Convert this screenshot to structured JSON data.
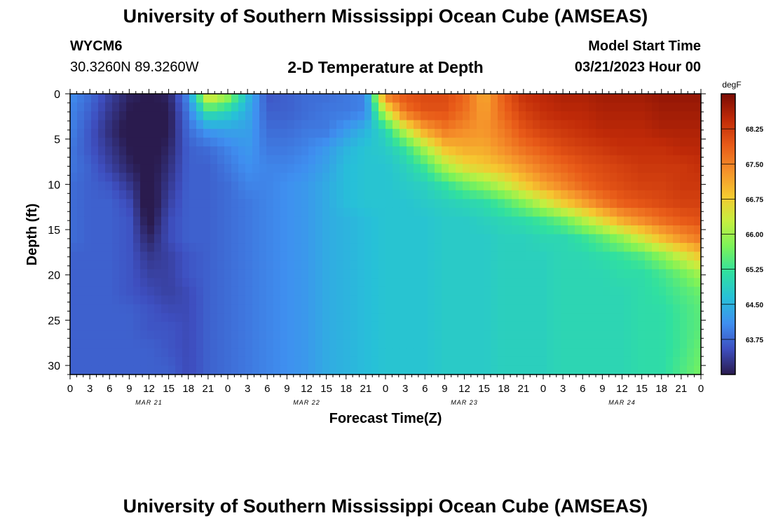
{
  "header": {
    "title": "University of Southern Mississippi Ocean Cube (AMSEAS)",
    "station": "WYCM6",
    "coords": "30.3260N  89.3260W",
    "plot_title": "2-D Temperature at Depth",
    "start_label": "Model Start Time",
    "start_value": "03/21/2023 Hour 00"
  },
  "footer": {
    "title": "University of Southern Mississippi Ocean Cube (AMSEAS)"
  },
  "chart_data": {
    "type": "heatmap",
    "xlabel": "Forecast Time(Z)",
    "ylabel": "Depth (ft)",
    "x_hours_range": [
      0,
      96
    ],
    "y_range": [
      0,
      31
    ],
    "y_inverted": true,
    "x_tick_labels": [
      "0",
      "3",
      "6",
      "9",
      "12",
      "15",
      "18",
      "21",
      "0",
      "3",
      "6",
      "9",
      "12",
      "15",
      "18",
      "21",
      "0",
      "3",
      "6",
      "9",
      "12",
      "15",
      "18",
      "21",
      "0",
      "3",
      "6",
      "9",
      "12",
      "15",
      "18",
      "21",
      "0"
    ],
    "date_labels": [
      "MAR 21",
      "MAR 22",
      "MAR 23",
      "MAR 24"
    ],
    "y_ticks": [
      0,
      5,
      10,
      15,
      20,
      25,
      30
    ],
    "colorbar": {
      "unit": "degF",
      "ticks": [
        "63.75",
        "64.50",
        "65.25",
        "66.00",
        "66.75",
        "67.50",
        "68.25"
      ],
      "range": [
        63.0,
        69.0
      ]
    },
    "colormap": [
      "#2a1b4e",
      "#3e4fc0",
      "#3f8ff0",
      "#27c0d8",
      "#30e0a0",
      "#7af25a",
      "#c5ef40",
      "#f5c830",
      "#f5902a",
      "#e85a18",
      "#c02a08",
      "#7a0c04"
    ],
    "temperature_grid": {
      "depths_ft": [
        0,
        2,
        4,
        6,
        8,
        10,
        12,
        14,
        16,
        18,
        20,
        22,
        24,
        26,
        28,
        31
      ],
      "hours": [
        0,
        3,
        6,
        9,
        12,
        15,
        18,
        21,
        24,
        27,
        30,
        33,
        36,
        39,
        42,
        45,
        48,
        51,
        54,
        57,
        60,
        63,
        66,
        69,
        72,
        75,
        78,
        81,
        84,
        87,
        90,
        93,
        96
      ],
      "rows": [
        [
          64.1,
          63.8,
          63.4,
          63.1,
          63.0,
          63.1,
          64.1,
          66.8,
          66.1,
          64.6,
          63.6,
          63.7,
          63.8,
          63.8,
          63.9,
          64.0,
          67.7,
          68.0,
          68.1,
          68.1,
          67.8,
          67.1,
          67.9,
          68.4,
          68.5,
          68.6,
          68.6,
          68.7,
          68.7,
          68.7,
          68.8,
          68.8,
          68.8
        ],
        [
          64.0,
          63.7,
          63.3,
          63.0,
          62.9,
          63.0,
          63.9,
          65.2,
          64.9,
          64.4,
          63.7,
          63.7,
          63.8,
          63.9,
          63.9,
          64.0,
          66.3,
          67.7,
          68.0,
          68.0,
          67.7,
          67.2,
          67.8,
          68.2,
          68.4,
          68.5,
          68.5,
          68.6,
          68.6,
          68.6,
          68.7,
          68.7,
          68.7
        ],
        [
          64.0,
          63.6,
          63.2,
          62.9,
          62.9,
          63.0,
          63.8,
          64.2,
          64.3,
          64.3,
          63.8,
          63.8,
          63.9,
          63.9,
          64.2,
          64.5,
          65.0,
          66.3,
          67.2,
          67.6,
          67.4,
          67.3,
          67.6,
          68.0,
          68.2,
          68.3,
          68.4,
          68.5,
          68.5,
          68.5,
          68.6,
          68.6,
          68.6
        ],
        [
          63.9,
          63.6,
          63.3,
          63.0,
          62.9,
          63.1,
          63.7,
          63.8,
          64.0,
          64.2,
          63.9,
          63.9,
          64.0,
          64.2,
          64.5,
          64.7,
          64.8,
          65.2,
          66.1,
          66.9,
          67.1,
          67.1,
          67.4,
          67.7,
          67.9,
          68.1,
          68.2,
          68.3,
          68.4,
          68.4,
          68.4,
          68.5,
          68.5
        ],
        [
          63.9,
          63.7,
          63.4,
          63.1,
          62.9,
          63.2,
          63.7,
          63.7,
          63.9,
          64.1,
          64.0,
          64.0,
          64.1,
          64.3,
          64.6,
          64.7,
          64.7,
          64.9,
          65.3,
          66.1,
          66.6,
          66.8,
          67.0,
          67.3,
          67.6,
          67.8,
          68.0,
          68.1,
          68.2,
          68.3,
          68.3,
          68.3,
          68.4
        ],
        [
          63.8,
          63.7,
          63.6,
          63.3,
          62.9,
          63.3,
          63.7,
          63.7,
          63.8,
          64.0,
          64.0,
          64.1,
          64.2,
          64.4,
          64.6,
          64.7,
          64.7,
          64.8,
          64.9,
          65.2,
          65.6,
          65.9,
          66.3,
          66.8,
          67.2,
          67.5,
          67.8,
          68.0,
          68.1,
          68.2,
          68.2,
          68.3,
          68.3
        ],
        [
          63.8,
          63.7,
          63.7,
          63.5,
          62.8,
          63.4,
          63.7,
          63.7,
          63.8,
          63.9,
          64.0,
          64.1,
          64.2,
          64.4,
          64.6,
          64.7,
          64.7,
          64.7,
          64.8,
          64.9,
          65.0,
          65.1,
          65.4,
          65.8,
          66.3,
          66.8,
          67.2,
          67.6,
          67.9,
          68.0,
          68.1,
          68.2,
          68.2
        ],
        [
          63.8,
          63.7,
          63.7,
          63.6,
          62.9,
          63.5,
          63.7,
          63.7,
          63.8,
          63.9,
          64.0,
          64.1,
          64.2,
          64.4,
          64.5,
          64.6,
          64.7,
          64.7,
          64.7,
          64.8,
          64.8,
          64.9,
          65.0,
          65.1,
          65.3,
          65.6,
          66.1,
          66.6,
          67.1,
          67.4,
          67.7,
          67.9,
          68.0
        ],
        [
          63.8,
          63.7,
          63.7,
          63.6,
          63.1,
          63.5,
          63.7,
          63.7,
          63.8,
          63.9,
          64.0,
          64.1,
          64.2,
          64.4,
          64.5,
          64.6,
          64.7,
          64.7,
          64.7,
          64.8,
          64.8,
          64.8,
          64.9,
          64.9,
          65.0,
          65.0,
          65.2,
          65.5,
          65.9,
          66.4,
          66.9,
          67.3,
          67.6
        ],
        [
          63.7,
          63.7,
          63.7,
          63.6,
          63.3,
          63.4,
          63.6,
          63.7,
          63.8,
          63.9,
          64.0,
          64.1,
          64.2,
          64.4,
          64.5,
          64.6,
          64.7,
          64.7,
          64.7,
          64.8,
          64.8,
          64.8,
          64.9,
          64.9,
          64.9,
          65.0,
          65.0,
          65.1,
          65.2,
          65.4,
          65.8,
          66.3,
          66.8
        ],
        [
          63.7,
          63.7,
          63.7,
          63.6,
          63.4,
          63.4,
          63.6,
          63.7,
          63.8,
          63.9,
          64.0,
          64.1,
          64.2,
          64.4,
          64.5,
          64.6,
          64.7,
          64.7,
          64.7,
          64.8,
          64.8,
          64.8,
          64.9,
          64.9,
          64.9,
          65.0,
          65.0,
          65.0,
          65.1,
          65.1,
          65.3,
          65.6,
          66.0
        ],
        [
          63.7,
          63.7,
          63.7,
          63.6,
          63.5,
          63.4,
          63.5,
          63.7,
          63.8,
          63.9,
          64.0,
          64.1,
          64.2,
          64.4,
          64.5,
          64.6,
          64.7,
          64.7,
          64.7,
          64.8,
          64.8,
          64.8,
          64.9,
          64.9,
          64.9,
          65.0,
          65.0,
          65.0,
          65.0,
          65.1,
          65.2,
          65.4,
          65.6
        ],
        [
          63.7,
          63.7,
          63.7,
          63.7,
          63.6,
          63.5,
          63.5,
          63.7,
          63.8,
          63.9,
          64.0,
          64.1,
          64.2,
          64.4,
          64.5,
          64.6,
          64.7,
          64.7,
          64.7,
          64.8,
          64.8,
          64.8,
          64.9,
          64.9,
          64.9,
          65.0,
          65.0,
          65.0,
          65.0,
          65.1,
          65.1,
          65.3,
          65.5
        ],
        [
          63.7,
          63.7,
          63.7,
          63.7,
          63.6,
          63.6,
          63.5,
          63.7,
          63.8,
          63.9,
          64.0,
          64.1,
          64.2,
          64.4,
          64.5,
          64.6,
          64.7,
          64.7,
          64.7,
          64.8,
          64.8,
          64.8,
          64.9,
          64.9,
          64.9,
          65.0,
          65.0,
          65.0,
          65.0,
          65.1,
          65.1,
          65.3,
          65.5
        ],
        [
          63.7,
          63.7,
          63.7,
          63.7,
          63.7,
          63.6,
          63.5,
          63.7,
          63.8,
          63.9,
          64.0,
          64.1,
          64.2,
          64.4,
          64.5,
          64.6,
          64.7,
          64.7,
          64.7,
          64.8,
          64.8,
          64.8,
          64.9,
          64.9,
          64.9,
          65.0,
          65.0,
          65.0,
          65.0,
          65.1,
          65.1,
          65.3,
          65.6
        ],
        [
          63.7,
          63.7,
          63.7,
          63.7,
          63.7,
          63.7,
          63.5,
          63.7,
          63.8,
          63.9,
          64.0,
          64.1,
          64.2,
          64.4,
          64.5,
          64.6,
          64.7,
          64.7,
          64.7,
          64.8,
          64.8,
          64.8,
          64.9,
          64.9,
          64.9,
          65.0,
          65.0,
          65.0,
          65.0,
          65.1,
          65.1,
          65.4,
          65.7
        ]
      ]
    }
  }
}
